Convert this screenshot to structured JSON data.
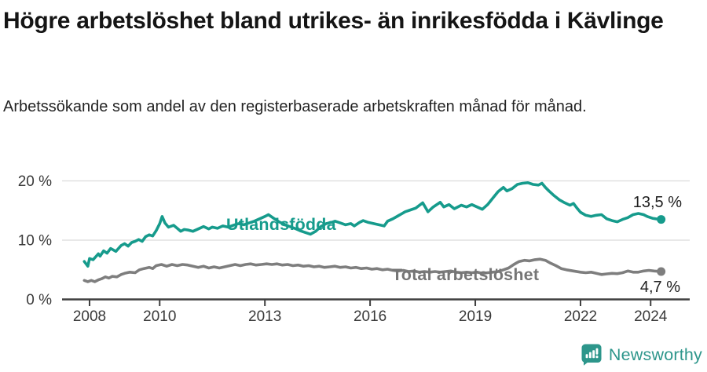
{
  "header": {
    "title": "Högre arbetslöshet bland utrikes- än inrikesfödda i Kävlinge",
    "subtitle": "Arbetssökande som andel av den registerbaserade arbetskraften månad för månad."
  },
  "footer": {
    "brand": "Newsworthy"
  },
  "colors": {
    "teal": "#169B8C",
    "gray": "#7E7E7E",
    "gray_label": "#757575",
    "axis_text": "#3A3A3A",
    "grid": "#DBDBDB",
    "axis_line": "#3F3F3F",
    "end_label_text": "#1F1F1F",
    "logo_teal": "#2D968B"
  },
  "chart_data": {
    "type": "line",
    "title": "Högre arbetslöshet bland utrikes- än inrikesfödda i Kävlinge",
    "subtitle": "Arbetssökande som andel av den registerbaserade arbetskraften månad för månad.",
    "unit": "% av registerbaserad arbetskraft",
    "grid": "horizontal",
    "legend_position": "inline-labels",
    "x_axis": {
      "ticks": [
        2008,
        2010,
        2013,
        2016,
        2019,
        2022,
        2024
      ],
      "tick_labels": [
        "2008",
        "2010",
        "2013",
        "2016",
        "2019",
        "2022",
        "2024"
      ],
      "range": [
        2007.8,
        2025.1
      ]
    },
    "y_axis": {
      "ticks": [
        0,
        10,
        20
      ],
      "tick_labels": [
        "0 %",
        "10 %",
        "20 %"
      ],
      "range": [
        0,
        21
      ]
    },
    "series": [
      {
        "name": "Utlandsfödda",
        "color": "#169B8C",
        "end_label": "13,5 %",
        "end_value": 13.5,
        "points": [
          [
            2007.85,
            6.4
          ],
          [
            2007.95,
            5.6
          ],
          [
            2008.0,
            6.9
          ],
          [
            2008.1,
            6.7
          ],
          [
            2008.25,
            7.7
          ],
          [
            2008.3,
            7.3
          ],
          [
            2008.4,
            8.2
          ],
          [
            2008.5,
            7.8
          ],
          [
            2008.6,
            8.6
          ],
          [
            2008.75,
            8.1
          ],
          [
            2008.9,
            9.1
          ],
          [
            2009.0,
            9.4
          ],
          [
            2009.1,
            9.0
          ],
          [
            2009.2,
            9.6
          ],
          [
            2009.3,
            9.8
          ],
          [
            2009.4,
            10.1
          ],
          [
            2009.5,
            9.8
          ],
          [
            2009.6,
            10.6
          ],
          [
            2009.7,
            10.9
          ],
          [
            2009.8,
            10.7
          ],
          [
            2009.9,
            11.6
          ],
          [
            2010.0,
            12.8
          ],
          [
            2010.07,
            14.0
          ],
          [
            2010.15,
            12.9
          ],
          [
            2010.25,
            12.2
          ],
          [
            2010.4,
            12.5
          ],
          [
            2010.5,
            12.0
          ],
          [
            2010.6,
            11.5
          ],
          [
            2010.7,
            11.8
          ],
          [
            2010.82,
            11.7
          ],
          [
            2010.95,
            11.5
          ],
          [
            2011.1,
            11.9
          ],
          [
            2011.25,
            12.3
          ],
          [
            2011.4,
            11.9
          ],
          [
            2011.5,
            12.2
          ],
          [
            2011.65,
            12.0
          ],
          [
            2011.8,
            12.4
          ],
          [
            2011.95,
            12.2
          ],
          [
            2012.1,
            12.5
          ],
          [
            2012.25,
            12.8
          ],
          [
            2012.4,
            12.6
          ],
          [
            2012.55,
            12.9
          ],
          [
            2012.7,
            13.2
          ],
          [
            2012.85,
            13.6
          ],
          [
            2013.0,
            14.0
          ],
          [
            2013.1,
            14.3
          ],
          [
            2013.25,
            13.7
          ],
          [
            2013.4,
            13.1
          ],
          [
            2013.55,
            12.7
          ],
          [
            2013.7,
            12.3
          ],
          [
            2013.85,
            12.0
          ],
          [
            2014.0,
            11.6
          ],
          [
            2014.15,
            11.3
          ],
          [
            2014.3,
            11.0
          ],
          [
            2014.45,
            11.5
          ],
          [
            2014.6,
            12.3
          ],
          [
            2014.75,
            12.8
          ],
          [
            2014.9,
            13.0
          ],
          [
            2015.0,
            13.2
          ],
          [
            2015.15,
            12.9
          ],
          [
            2015.3,
            12.6
          ],
          [
            2015.45,
            12.8
          ],
          [
            2015.55,
            12.4
          ],
          [
            2015.7,
            13.0
          ],
          [
            2015.8,
            13.3
          ],
          [
            2015.95,
            13.0
          ],
          [
            2016.1,
            12.8
          ],
          [
            2016.25,
            12.6
          ],
          [
            2016.4,
            12.4
          ],
          [
            2016.5,
            13.2
          ],
          [
            2016.65,
            13.6
          ],
          [
            2016.8,
            14.1
          ],
          [
            2017.0,
            14.8
          ],
          [
            2017.15,
            15.1
          ],
          [
            2017.3,
            15.4
          ],
          [
            2017.5,
            16.3
          ],
          [
            2017.65,
            14.8
          ],
          [
            2017.8,
            15.6
          ],
          [
            2018.0,
            16.4
          ],
          [
            2018.1,
            15.6
          ],
          [
            2018.25,
            16.0
          ],
          [
            2018.4,
            15.3
          ],
          [
            2018.6,
            15.9
          ],
          [
            2018.75,
            15.6
          ],
          [
            2018.9,
            16.0
          ],
          [
            2019.05,
            15.6
          ],
          [
            2019.2,
            15.2
          ],
          [
            2019.35,
            16.0
          ],
          [
            2019.5,
            17.1
          ],
          [
            2019.65,
            18.2
          ],
          [
            2019.8,
            18.9
          ],
          [
            2019.9,
            18.3
          ],
          [
            2020.05,
            18.7
          ],
          [
            2020.2,
            19.4
          ],
          [
            2020.35,
            19.6
          ],
          [
            2020.5,
            19.7
          ],
          [
            2020.65,
            19.4
          ],
          [
            2020.8,
            19.3
          ],
          [
            2020.9,
            19.6
          ],
          [
            2021.0,
            18.9
          ],
          [
            2021.1,
            18.3
          ],
          [
            2021.25,
            17.5
          ],
          [
            2021.4,
            16.8
          ],
          [
            2021.55,
            16.3
          ],
          [
            2021.7,
            15.9
          ],
          [
            2021.8,
            16.2
          ],
          [
            2021.9,
            15.4
          ],
          [
            2022.0,
            14.7
          ],
          [
            2022.15,
            14.2
          ],
          [
            2022.3,
            14.0
          ],
          [
            2022.45,
            14.2
          ],
          [
            2022.6,
            14.3
          ],
          [
            2022.75,
            13.6
          ],
          [
            2022.9,
            13.3
          ],
          [
            2023.05,
            13.1
          ],
          [
            2023.2,
            13.5
          ],
          [
            2023.35,
            13.8
          ],
          [
            2023.5,
            14.3
          ],
          [
            2023.65,
            14.5
          ],
          [
            2023.8,
            14.3
          ],
          [
            2023.9,
            14.0
          ],
          [
            2024.05,
            13.7
          ],
          [
            2024.15,
            13.6
          ],
          [
            2024.3,
            13.5
          ]
        ]
      },
      {
        "name": "Total arbetslöshet",
        "color": "#7E7E7E",
        "end_label": "4,7 %",
        "end_value": 4.7,
        "points": [
          [
            2007.85,
            3.2
          ],
          [
            2007.95,
            3.0
          ],
          [
            2008.05,
            3.2
          ],
          [
            2008.15,
            3.0
          ],
          [
            2008.25,
            3.3
          ],
          [
            2008.35,
            3.5
          ],
          [
            2008.45,
            3.8
          ],
          [
            2008.55,
            3.6
          ],
          [
            2008.65,
            3.9
          ],
          [
            2008.78,
            3.8
          ],
          [
            2008.9,
            4.2
          ],
          [
            2009.0,
            4.4
          ],
          [
            2009.15,
            4.6
          ],
          [
            2009.3,
            4.5
          ],
          [
            2009.42,
            5.0
          ],
          [
            2009.55,
            5.2
          ],
          [
            2009.7,
            5.4
          ],
          [
            2009.8,
            5.2
          ],
          [
            2009.9,
            5.7
          ],
          [
            2010.05,
            5.9
          ],
          [
            2010.2,
            5.6
          ],
          [
            2010.35,
            5.9
          ],
          [
            2010.5,
            5.7
          ],
          [
            2010.65,
            5.9
          ],
          [
            2010.8,
            5.8
          ],
          [
            2010.95,
            5.6
          ],
          [
            2011.1,
            5.4
          ],
          [
            2011.25,
            5.6
          ],
          [
            2011.4,
            5.3
          ],
          [
            2011.55,
            5.5
          ],
          [
            2011.7,
            5.3
          ],
          [
            2011.85,
            5.5
          ],
          [
            2012.0,
            5.7
          ],
          [
            2012.15,
            5.9
          ],
          [
            2012.3,
            5.7
          ],
          [
            2012.45,
            5.9
          ],
          [
            2012.6,
            6.0
          ],
          [
            2012.75,
            5.8
          ],
          [
            2012.9,
            5.9
          ],
          [
            2013.05,
            6.0
          ],
          [
            2013.2,
            5.9
          ],
          [
            2013.35,
            6.0
          ],
          [
            2013.5,
            5.8
          ],
          [
            2013.65,
            5.9
          ],
          [
            2013.8,
            5.7
          ],
          [
            2013.95,
            5.8
          ],
          [
            2014.1,
            5.6
          ],
          [
            2014.25,
            5.7
          ],
          [
            2014.4,
            5.5
          ],
          [
            2014.55,
            5.6
          ],
          [
            2014.7,
            5.4
          ],
          [
            2014.85,
            5.5
          ],
          [
            2015.0,
            5.6
          ],
          [
            2015.15,
            5.4
          ],
          [
            2015.3,
            5.5
          ],
          [
            2015.45,
            5.3
          ],
          [
            2015.6,
            5.4
          ],
          [
            2015.75,
            5.2
          ],
          [
            2015.9,
            5.3
          ],
          [
            2016.05,
            5.1
          ],
          [
            2016.2,
            5.2
          ],
          [
            2016.35,
            5.0
          ],
          [
            2016.5,
            5.1
          ],
          [
            2016.65,
            4.9
          ],
          [
            2016.8,
            4.8
          ],
          [
            2016.95,
            4.9
          ],
          [
            2017.1,
            4.7
          ],
          [
            2017.25,
            4.8
          ],
          [
            2017.4,
            4.6
          ],
          [
            2017.55,
            4.7
          ],
          [
            2017.7,
            4.6
          ],
          [
            2017.85,
            4.7
          ],
          [
            2018.0,
            4.6
          ],
          [
            2018.15,
            4.7
          ],
          [
            2018.3,
            4.8
          ],
          [
            2018.45,
            4.6
          ],
          [
            2018.6,
            4.5
          ],
          [
            2018.75,
            4.6
          ],
          [
            2018.9,
            4.5
          ],
          [
            2019.05,
            4.6
          ],
          [
            2019.2,
            4.4
          ],
          [
            2019.35,
            4.5
          ],
          [
            2019.5,
            4.6
          ],
          [
            2019.65,
            4.7
          ],
          [
            2019.8,
            5.0
          ],
          [
            2019.95,
            5.3
          ],
          [
            2020.1,
            5.9
          ],
          [
            2020.25,
            6.4
          ],
          [
            2020.4,
            6.6
          ],
          [
            2020.55,
            6.5
          ],
          [
            2020.7,
            6.7
          ],
          [
            2020.85,
            6.8
          ],
          [
            2021.0,
            6.6
          ],
          [
            2021.15,
            6.1
          ],
          [
            2021.3,
            5.7
          ],
          [
            2021.45,
            5.2
          ],
          [
            2021.6,
            5.0
          ],
          [
            2021.8,
            4.8
          ],
          [
            2022.0,
            4.6
          ],
          [
            2022.15,
            4.5
          ],
          [
            2022.3,
            4.6
          ],
          [
            2022.45,
            4.4
          ],
          [
            2022.6,
            4.2
          ],
          [
            2022.75,
            4.3
          ],
          [
            2022.9,
            4.4
          ],
          [
            2023.05,
            4.35
          ],
          [
            2023.2,
            4.5
          ],
          [
            2023.35,
            4.8
          ],
          [
            2023.5,
            4.6
          ],
          [
            2023.65,
            4.6
          ],
          [
            2023.8,
            4.8
          ],
          [
            2023.95,
            4.9
          ],
          [
            2024.1,
            4.8
          ],
          [
            2024.3,
            4.7
          ]
        ]
      }
    ]
  }
}
